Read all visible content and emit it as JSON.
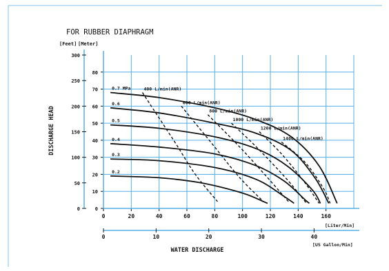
{
  "chart_data": {
    "type": "line",
    "title": "FOR RUBBER DIAPHRAGM",
    "unit_labels": {
      "feet": "[Feet]",
      "meter": "[Meter]"
    },
    "ylabel": "DISCHARGE HEAD",
    "xlabel": "WATER DISCHARGE",
    "x_unit_liter": "[Liter/Min]",
    "x_unit_gallon": "[US Gallon/Min]",
    "ylim_meter": [
      0,
      90
    ],
    "ylim_feet": [
      0,
      300
    ],
    "xlim_liter": [
      0,
      180
    ],
    "xlim_gallon": [
      0,
      47.55
    ],
    "grid": true,
    "x_ticks_liter": [
      "0",
      "20",
      "40",
      "60",
      "80",
      "100",
      "120",
      "140",
      "160"
    ],
    "x_ticks_gallon": [
      "0",
      "10",
      "20",
      "30",
      "40"
    ],
    "y_ticks_meter": [
      "0",
      "10",
      "20",
      "30",
      "40",
      "50",
      "60",
      "70",
      "80"
    ],
    "y_ticks_feet": [
      "0",
      "50",
      "100",
      "150",
      "200",
      "250",
      "300"
    ],
    "colors": {
      "frame": "#7fc6ee",
      "grid": "#55aee6",
      "axis": "#111111",
      "curve": "#111111"
    },
    "pressure_series": [
      {
        "name": "0.7 MPa",
        "points": [
          [
            5,
            68
          ],
          [
            40,
            65
          ],
          [
            80,
            59
          ],
          [
            110,
            52
          ],
          [
            135,
            42
          ],
          [
            155,
            25
          ],
          [
            168,
            3
          ]
        ]
      },
      {
        "name": "0.6",
        "points": [
          [
            5,
            59
          ],
          [
            40,
            56
          ],
          [
            80,
            50
          ],
          [
            110,
            44
          ],
          [
            135,
            34
          ],
          [
            152,
            18
          ],
          [
            162,
            3
          ]
        ]
      },
      {
        "name": "0.5",
        "points": [
          [
            5,
            49
          ],
          [
            40,
            47
          ],
          [
            80,
            42
          ],
          [
            110,
            35
          ],
          [
            132,
            25
          ],
          [
            150,
            11
          ],
          [
            156,
            3
          ]
        ]
      },
      {
        "name": "0.4",
        "points": [
          [
            5,
            38
          ],
          [
            40,
            36
          ],
          [
            80,
            32
          ],
          [
            110,
            25
          ],
          [
            130,
            16
          ],
          [
            145,
            5
          ],
          [
            148,
            3
          ]
        ]
      },
      {
        "name": "0.3",
        "points": [
          [
            5,
            29
          ],
          [
            40,
            28
          ],
          [
            80,
            24
          ],
          [
            110,
            17
          ],
          [
            130,
            7
          ],
          [
            137,
            3
          ]
        ]
      },
      {
        "name": "0.2",
        "points": [
          [
            5,
            19
          ],
          [
            40,
            18
          ],
          [
            70,
            15
          ],
          [
            100,
            9
          ],
          [
            115,
            4
          ],
          [
            118,
            3
          ]
        ]
      }
    ],
    "air_consumption_series": [
      {
        "name": "400 L/min(ANR)",
        "points": [
          [
            28,
            68
          ],
          [
            52,
            38
          ],
          [
            66,
            20
          ],
          [
            82,
            4
          ]
        ]
      },
      {
        "name": "600 L/min(ANR)",
        "points": [
          [
            56,
            60
          ],
          [
            78,
            38
          ],
          [
            98,
            18
          ],
          [
            115,
            4
          ]
        ]
      },
      {
        "name": "800 L/min(ANR)",
        "points": [
          [
            75,
            55
          ],
          [
            98,
            36
          ],
          [
            118,
            18
          ],
          [
            133,
            4
          ]
        ]
      },
      {
        "name": "1000 L/min(ANR)",
        "points": [
          [
            92,
            50
          ],
          [
            110,
            36
          ],
          [
            132,
            17
          ],
          [
            146,
            3
          ]
        ]
      },
      {
        "name": "1200 L/min(ANR)",
        "points": [
          [
            112,
            45
          ],
          [
            128,
            32
          ],
          [
            144,
            16
          ],
          [
            155,
            3
          ]
        ]
      },
      {
        "name": "1400 L/min(ANR)",
        "points": [
          [
            128,
            39
          ],
          [
            145,
            27
          ],
          [
            158,
            12
          ],
          [
            163,
            3
          ]
        ]
      }
    ]
  }
}
